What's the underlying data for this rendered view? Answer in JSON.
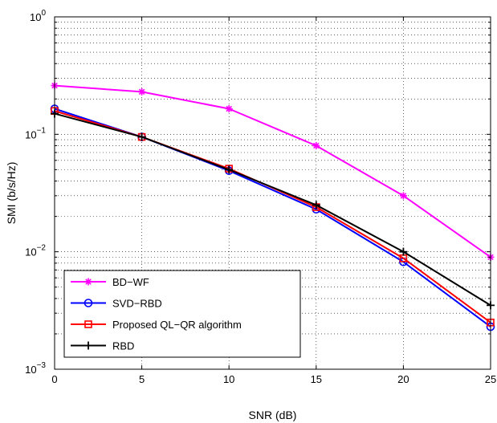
{
  "chart_data": {
    "type": "line",
    "title": "",
    "xlabel": "SNR (dB)",
    "ylabel": "SMI (b/s/Hz)",
    "x": [
      0,
      5,
      10,
      15,
      20,
      25
    ],
    "xlim": [
      0,
      25
    ],
    "ylim": [
      0.001,
      1
    ],
    "yscale": "log",
    "x_ticks": [
      0,
      5,
      10,
      15,
      20,
      25
    ],
    "y_ticks": [
      {
        "value": 0.001,
        "base": "10",
        "exp": "−3"
      },
      {
        "value": 0.01,
        "base": "10",
        "exp": "−2"
      },
      {
        "value": 0.1,
        "base": "10",
        "exp": "−1"
      },
      {
        "value": 1,
        "base": "10",
        "exp": "0"
      }
    ],
    "grid": true,
    "legend_position": "bottom-left",
    "series": [
      {
        "name": "BD−WF",
        "color": "#ff00ff",
        "marker": "asterisk",
        "values": [
          0.26,
          0.23,
          0.165,
          0.08,
          0.03,
          0.009
        ]
      },
      {
        "name": "SVD−RBD",
        "color": "#0000ff",
        "marker": "circle",
        "values": [
          0.165,
          0.095,
          0.049,
          0.023,
          0.0082,
          0.0023
        ]
      },
      {
        "name": "Proposed QL−QR algorithm",
        "color": "#ff0000",
        "marker": "square",
        "values": [
          0.158,
          0.095,
          0.051,
          0.024,
          0.0088,
          0.0025
        ]
      },
      {
        "name": "RBD",
        "color": "#000000",
        "marker": "plus",
        "values": [
          0.15,
          0.095,
          0.05,
          0.025,
          0.01,
          0.0035
        ]
      }
    ]
  }
}
